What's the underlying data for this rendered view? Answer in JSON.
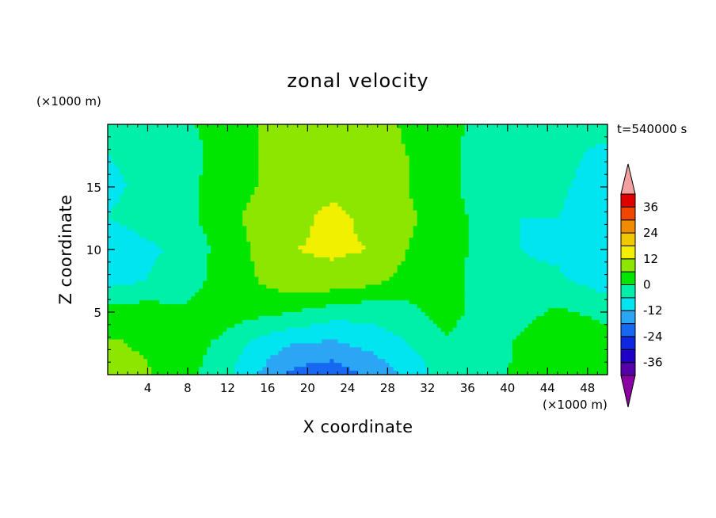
{
  "chart_data": {
    "type": "heatmap",
    "title": "zonal velocity",
    "xlabel": "X coordinate",
    "ylabel": "Z coordinate",
    "x_unit": "(×1000 m)",
    "y_unit": "(×1000 m)",
    "time_label": "t=540000 s",
    "xlim": [
      0,
      50
    ],
    "ylim": [
      0,
      20
    ],
    "x_ticks": [
      4,
      8,
      12,
      16,
      20,
      24,
      28,
      32,
      36,
      40,
      44,
      48
    ],
    "y_ticks": [
      5,
      10,
      15
    ],
    "colorbar": {
      "levels": [
        -42,
        -36,
        -30,
        -24,
        -18,
        -12,
        -6,
        0,
        6,
        12,
        18,
        24,
        30,
        36,
        42
      ],
      "tick_labels": [
        "36",
        "24",
        "12",
        "0",
        "-12",
        "-24",
        "-36"
      ],
      "tick_values": [
        36,
        24,
        12,
        0,
        -12,
        -24,
        -36
      ],
      "colors": [
        "#8b00a3",
        "#5500a8",
        "#1e00c8",
        "#0d28e0",
        "#1768f0",
        "#2aa6f5",
        "#00e5f0",
        "#00f0aa",
        "#00e600",
        "#8ce600",
        "#f0f000",
        "#f0c800",
        "#f08c00",
        "#f04600",
        "#e00000",
        "#f4a0a0"
      ],
      "extend": "both"
    },
    "z_x": [
      0,
      3.75,
      7.5,
      11.25,
      15,
      18.75,
      22.5,
      26.25,
      30,
      33.75,
      37.5,
      41.25,
      45,
      48.75,
      50
    ],
    "z_y": [
      0,
      2.5,
      5,
      7.5,
      10,
      12.5,
      15,
      17.5,
      20
    ],
    "z_values": [
      [
        9,
        7,
        2,
        -3,
        -12,
        -20,
        -22,
        -17,
        -11,
        -3,
        -5,
        2,
        6,
        5,
        5
      ],
      [
        7,
        5,
        3,
        -1,
        -8,
        -12,
        -13,
        -10,
        -6,
        -1,
        -4,
        1,
        5,
        3,
        3
      ],
      [
        2,
        3,
        1,
        3,
        2,
        0,
        -3,
        -4,
        -2,
        3,
        -3,
        -2,
        1,
        -1,
        -2
      ],
      [
        -8,
        -6,
        -3,
        2,
        6,
        10,
        10,
        8,
        4,
        3,
        -3,
        -5,
        -5,
        -8,
        -9
      ],
      [
        -10,
        -7,
        -5,
        2,
        7,
        12,
        13,
        12,
        6,
        3,
        -2,
        -6,
        -7,
        -11,
        -11
      ],
      [
        -6,
        -4,
        -2,
        3,
        8,
        10,
        14,
        10,
        7,
        3,
        -2,
        -6,
        -6,
        -8,
        -8
      ],
      [
        -7,
        -5,
        -2,
        3,
        6,
        10,
        10,
        9,
        6,
        3,
        -4,
        -5,
        -5,
        -8,
        -8
      ],
      [
        -6,
        -5,
        -3,
        2,
        6,
        8,
        8,
        9,
        6,
        3,
        -4,
        -4,
        -4,
        -7,
        -7
      ],
      [
        -4,
        -4,
        -1,
        2,
        6,
        7,
        9,
        9,
        5,
        3,
        -3,
        -4,
        -4,
        -4,
        -4
      ]
    ]
  }
}
